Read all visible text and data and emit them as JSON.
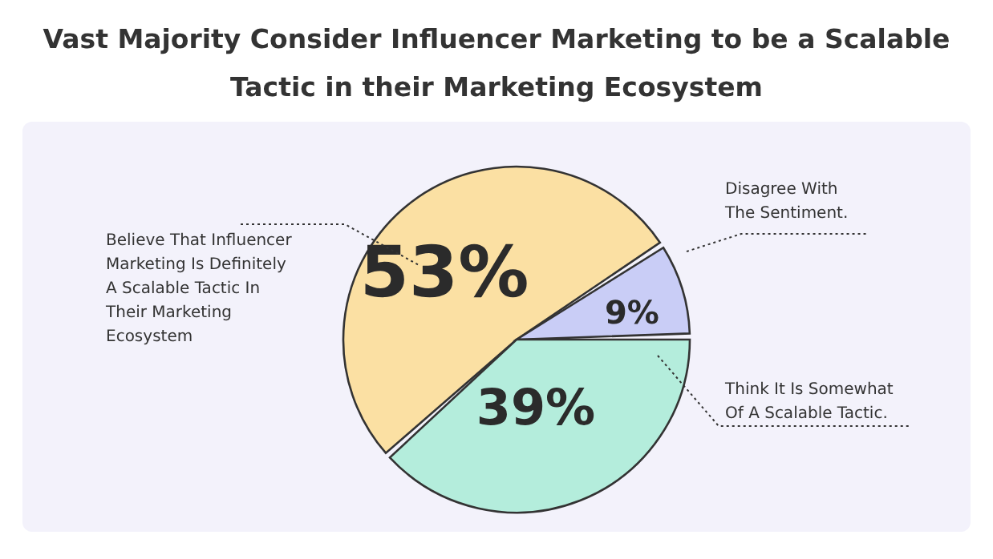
{
  "chart_data": {
    "type": "pie",
    "title": "Vast Majority Consider Influencer Marketing to be a Scalable Tactic in their Marketing Ecosystem",
    "categories": [
      "Believe That Influencer\nMarketing Is Definitely\nA Scalable Tactic In\nTheir Marketing\nEcosystem",
      "Disagree With\nThe Sentiment.",
      "Think It Is Somewhat\nOf A Scalable Tactic."
    ],
    "values": [
      53,
      9,
      39
    ],
    "colors": [
      "#fbe0a3",
      "#c9cdf6",
      "#b4eddc"
    ],
    "value_labels": [
      "53%",
      "9%",
      "39%"
    ]
  }
}
